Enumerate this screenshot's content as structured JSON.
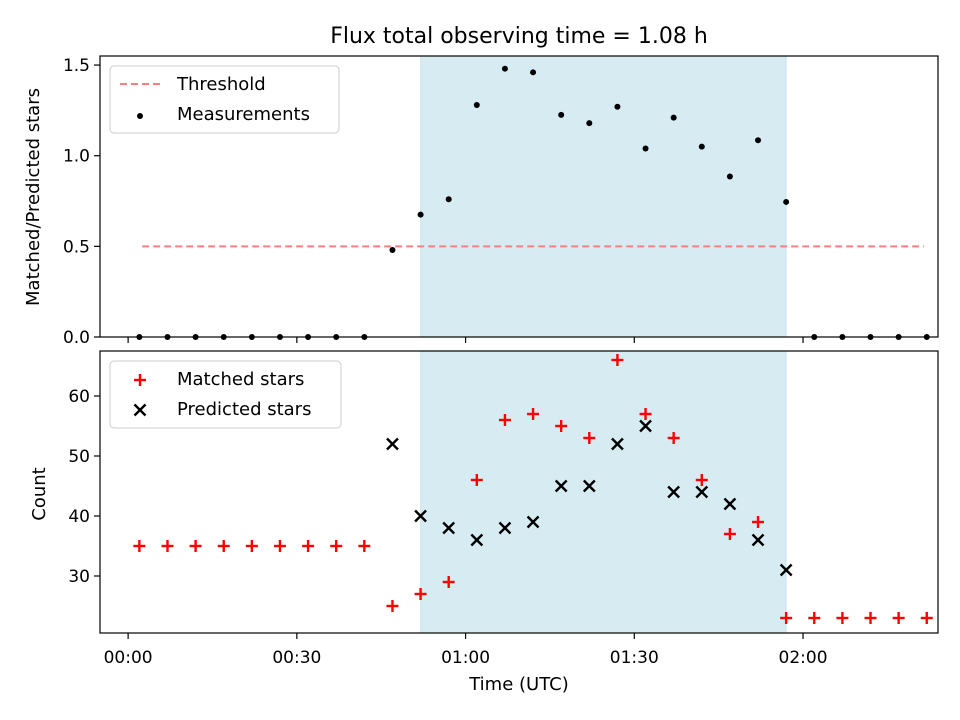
{
  "title": "Flux total observing time = 1.08 h",
  "shaded_color": "#add8e6",
  "chart_data": [
    {
      "type": "scatter",
      "panel": "top",
      "ylabel": "Matched/Predicted stars",
      "ylim": [
        0,
        1.55
      ],
      "yticks": [
        0.0,
        0.5,
        1.0,
        1.5
      ],
      "ytick_labels": [
        "0.0",
        "0.5",
        "1.0",
        "1.5"
      ],
      "xlim": [
        -5,
        144
      ],
      "shaded_region": [
        52,
        117
      ],
      "legend_position": "upper-left",
      "threshold": {
        "name": "Threshold",
        "value": 0.5,
        "x_range": [
          2.5,
          141.5
        ],
        "color": "#ff7f7f",
        "style": "dashed"
      },
      "series": [
        {
          "name": "Measurements",
          "color": "#000000",
          "marker": "dot",
          "x": [
            2,
            7,
            12,
            17,
            22,
            27,
            32,
            37,
            42,
            47,
            52,
            57,
            62,
            67,
            72,
            77,
            82,
            87,
            92,
            97,
            102,
            107,
            112,
            117,
            122,
            127,
            132,
            137,
            142
          ],
          "y": [
            0,
            0,
            0,
            0,
            0,
            0,
            0,
            0,
            0,
            0.48,
            0.675,
            0.76,
            1.28,
            1.48,
            1.46,
            1.225,
            1.18,
            1.27,
            1.04,
            1.21,
            1.05,
            0.885,
            1.085,
            0.745,
            0,
            0,
            0,
            0,
            0
          ]
        }
      ]
    },
    {
      "type": "scatter",
      "panel": "bottom",
      "ylabel": "Count",
      "xlabel": "Time (UTC)",
      "ylim": [
        20.5,
        67.5
      ],
      "yticks": [
        30,
        40,
        50,
        60
      ],
      "ytick_labels": [
        "30",
        "40",
        "50",
        "60"
      ],
      "xlim": [
        -5,
        144
      ],
      "xticks": [
        0,
        30,
        60,
        90,
        120
      ],
      "xtick_labels": [
        "00:00",
        "00:30",
        "01:00",
        "01:30",
        "02:00"
      ],
      "shaded_region": [
        52,
        117
      ],
      "legend_position": "upper-left",
      "series": [
        {
          "name": "Matched stars",
          "color": "#ff0000",
          "marker": "plus",
          "x": [
            2,
            7,
            12,
            17,
            22,
            27,
            32,
            37,
            42,
            47,
            52,
            57,
            62,
            67,
            72,
            77,
            82,
            87,
            92,
            97,
            102,
            107,
            112,
            117,
            122,
            127,
            132,
            137,
            142
          ],
          "y": [
            35,
            35,
            35,
            35,
            35,
            35,
            35,
            35,
            35,
            25,
            27,
            29,
            46,
            56,
            57,
            55,
            53,
            66,
            57,
            53,
            46,
            37,
            39,
            23,
            23,
            23,
            23,
            23,
            23
          ]
        },
        {
          "name": "Predicted stars",
          "color": "#000000",
          "marker": "x",
          "x": [
            47,
            52,
            57,
            62,
            67,
            72,
            77,
            82,
            87,
            92,
            97,
            102,
            107,
            112,
            117
          ],
          "y": [
            52,
            40,
            38,
            36,
            38,
            39,
            45,
            45,
            52,
            55,
            44,
            44,
            42,
            36,
            31
          ]
        }
      ]
    }
  ]
}
